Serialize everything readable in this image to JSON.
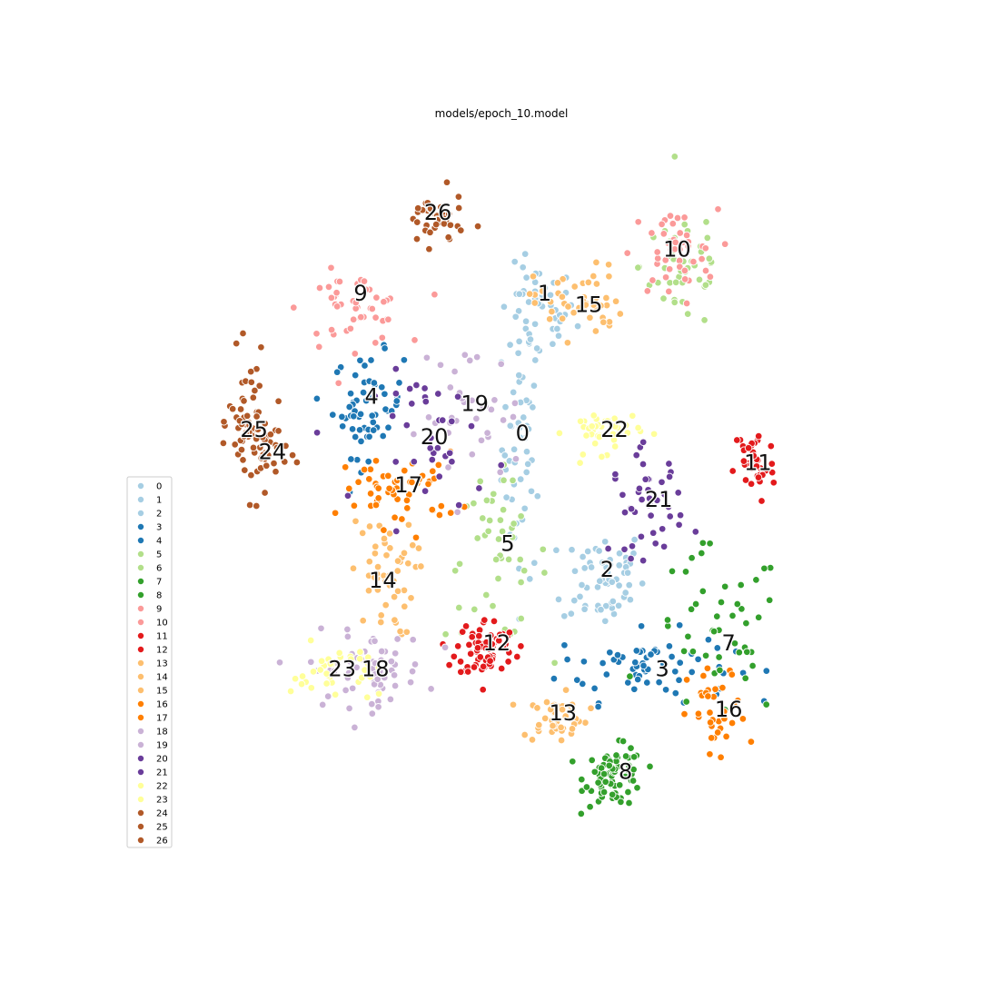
{
  "chart_data": {
    "type": "scatter",
    "title": "models/epoch_10.model",
    "grid": false,
    "axes_visible": false,
    "xlim": [
      0,
      100
    ],
    "ylim": [
      0,
      100
    ],
    "legend": {
      "placement": "bottom-left"
    },
    "series": [
      {
        "name": "0",
        "color": "#a6cee3",
        "label_at": [
          52.5,
          59.5
        ],
        "center": [
          52.5,
          58.0
        ],
        "spread": [
          1.4,
          9.0
        ],
        "n": 55
      },
      {
        "name": "1",
        "color": "#a6cee3",
        "label_at": [
          55.5,
          78.5
        ],
        "center": [
          54.5,
          76.0
        ],
        "spread": [
          2.6,
          3.2
        ],
        "n": 45
      },
      {
        "name": "2",
        "color": "#a6cee3",
        "label_at": [
          64.0,
          41.0
        ],
        "center": [
          63.5,
          40.0
        ],
        "spread": [
          2.8,
          3.5
        ],
        "n": 60
      },
      {
        "name": "3",
        "color": "#1f78b4",
        "label_at": [
          71.5,
          27.5
        ],
        "center": [
          69.0,
          28.0
        ],
        "spread": [
          6.0,
          2.4
        ],
        "n": 70
      },
      {
        "name": "4",
        "color": "#1f78b4",
        "label_at": [
          32.0,
          64.5
        ],
        "center": [
          31.5,
          63.5
        ],
        "spread": [
          2.4,
          3.5
        ],
        "n": 60
      },
      {
        "name": "5",
        "color": "#b2df8a",
        "label_at": [
          50.5,
          44.5
        ],
        "center": [
          49.0,
          42.5
        ],
        "spread": [
          3.5,
          5.5
        ],
        "n": 45
      },
      {
        "name": "6",
        "color": "#b2df8a",
        "label_at": [
          0,
          0
        ],
        "center": [
          74.5,
          82.5
        ],
        "spread": [
          3.0,
          4.5
        ],
        "n": 45
      },
      {
        "name": "7",
        "color": "#33a02c",
        "label_at": [
          80.5,
          31.0
        ],
        "center": [
          79.0,
          32.0
        ],
        "spread": [
          4.5,
          6.0
        ],
        "n": 45
      },
      {
        "name": "8",
        "color": "#33a02c",
        "label_at": [
          66.5,
          13.5
        ],
        "center": [
          65.0,
          13.0
        ],
        "spread": [
          2.0,
          2.0
        ],
        "n": 75
      },
      {
        "name": "9",
        "color": "#fb9a99",
        "label_at": [
          30.5,
          78.5
        ],
        "center": [
          29.5,
          76.5
        ],
        "spread": [
          3.5,
          2.5
        ],
        "n": 50
      },
      {
        "name": "10",
        "color": "#fb9a99",
        "label_at": [
          73.5,
          84.5
        ],
        "center": [
          73.0,
          84.0
        ],
        "spread": [
          3.0,
          3.0
        ],
        "n": 45
      },
      {
        "name": "11",
        "color": "#e31a1c",
        "label_at": [
          84.5,
          55.5
        ],
        "center": [
          84.0,
          55.5
        ],
        "spread": [
          1.4,
          2.8
        ],
        "n": 40
      },
      {
        "name": "12",
        "color": "#e31a1c",
        "label_at": [
          49.0,
          31.0
        ],
        "center": [
          47.5,
          30.5
        ],
        "spread": [
          2.0,
          2.0
        ],
        "n": 75
      },
      {
        "name": "13",
        "color": "#fdbf6f",
        "label_at": [
          58.0,
          21.5
        ],
        "center": [
          57.0,
          21.0
        ],
        "spread": [
          2.2,
          1.6
        ],
        "n": 45
      },
      {
        "name": "14",
        "color": "#fdbf6f",
        "label_at": [
          33.5,
          39.5
        ],
        "center": [
          33.5,
          40.0
        ],
        "spread": [
          2.2,
          4.0
        ],
        "n": 50
      },
      {
        "name": "15",
        "color": "#fdbf6f",
        "label_at": [
          61.5,
          77.0
        ],
        "center": [
          60.0,
          77.5
        ],
        "spread": [
          3.0,
          2.5
        ],
        "n": 50
      },
      {
        "name": "16",
        "color": "#ff7f00",
        "label_at": [
          80.5,
          22.0
        ],
        "center": [
          79.0,
          21.0
        ],
        "spread": [
          2.0,
          3.5
        ],
        "n": 35
      },
      {
        "name": "17",
        "color": "#ff7f00",
        "label_at": [
          37.0,
          52.5
        ],
        "center": [
          36.0,
          52.0
        ],
        "spread": [
          4.0,
          2.5
        ],
        "n": 55
      },
      {
        "name": "18",
        "color": "#cab2d6",
        "label_at": [
          32.5,
          27.5
        ],
        "center": [
          31.5,
          27.5
        ],
        "spread": [
          4.0,
          2.5
        ],
        "n": 70
      },
      {
        "name": "19",
        "color": "#cab2d6",
        "label_at": [
          46.0,
          63.5
        ],
        "center": [
          45.5,
          62.0
        ],
        "spread": [
          3.5,
          5.0
        ],
        "n": 35
      },
      {
        "name": "20",
        "color": "#6a3d9a",
        "label_at": [
          40.5,
          59.0
        ],
        "center": [
          41.5,
          59.0
        ],
        "spread": [
          4.5,
          4.5
        ],
        "n": 35
      },
      {
        "name": "21",
        "color": "#6a3d9a",
        "label_at": [
          71.0,
          50.5
        ],
        "center": [
          69.5,
          50.0
        ],
        "spread": [
          2.5,
          3.5
        ],
        "n": 45
      },
      {
        "name": "22",
        "color": "#ffff99",
        "label_at": [
          65.0,
          60.0
        ],
        "center": [
          63.5,
          60.0
        ],
        "spread": [
          2.5,
          1.5
        ],
        "n": 40
      },
      {
        "name": "23",
        "color": "#ffff99",
        "label_at": [
          28.0,
          27.5
        ],
        "center": [
          27.0,
          27.0
        ],
        "spread": [
          3.0,
          2.0
        ],
        "n": 35
      },
      {
        "name": "24",
        "color": "#b15928",
        "label_at": [
          18.5,
          57.0
        ],
        "center": [
          17.5,
          57.5
        ],
        "spread": [
          1.6,
          2.5
        ],
        "n": 35
      },
      {
        "name": "25",
        "color": "#b15928",
        "label_at": [
          16.0,
          60.0
        ],
        "center": [
          15.0,
          61.0
        ],
        "spread": [
          1.2,
          4.5
        ],
        "n": 50
      },
      {
        "name": "26",
        "color": "#b15928",
        "label_at": [
          41.0,
          89.5
        ],
        "center": [
          40.5,
          88.5
        ],
        "spread": [
          2.0,
          1.8
        ],
        "n": 40
      }
    ]
  }
}
